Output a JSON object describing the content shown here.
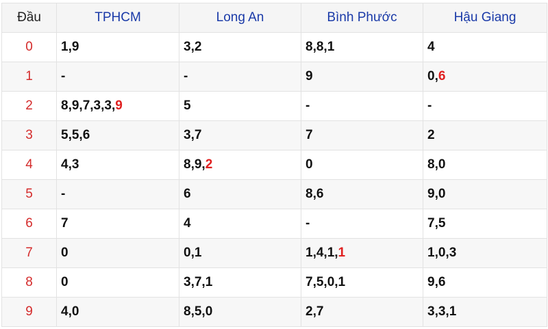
{
  "colors": {
    "header_text": "#1a3aa8",
    "highlight": "#e02020",
    "dau_text": "#d42b2b"
  },
  "headers": [
    "Đầu",
    "TPHCM",
    "Long An",
    "Bình Phước",
    "Hậu Giang"
  ],
  "rows": [
    {
      "dau": "0",
      "cells": [
        [
          {
            "t": "1,9"
          }
        ],
        [
          {
            "t": "3,2"
          }
        ],
        [
          {
            "t": "8,8,1"
          }
        ],
        [
          {
            "t": "4"
          }
        ]
      ]
    },
    {
      "dau": "1",
      "cells": [
        [
          {
            "t": "-"
          }
        ],
        [
          {
            "t": "-"
          }
        ],
        [
          {
            "t": "9"
          }
        ],
        [
          {
            "t": "0,"
          },
          {
            "t": "6",
            "hl": true
          }
        ]
      ]
    },
    {
      "dau": "2",
      "cells": [
        [
          {
            "t": "8,9,7,3,3,"
          },
          {
            "t": "9",
            "hl": true
          }
        ],
        [
          {
            "t": "5"
          }
        ],
        [
          {
            "t": "-"
          }
        ],
        [
          {
            "t": "-"
          }
        ]
      ]
    },
    {
      "dau": "3",
      "cells": [
        [
          {
            "t": "5,5,6"
          }
        ],
        [
          {
            "t": "3,7"
          }
        ],
        [
          {
            "t": "7"
          }
        ],
        [
          {
            "t": "2"
          }
        ]
      ]
    },
    {
      "dau": "4",
      "cells": [
        [
          {
            "t": "4,3"
          }
        ],
        [
          {
            "t": "8,9,"
          },
          {
            "t": "2",
            "hl": true
          }
        ],
        [
          {
            "t": "0"
          }
        ],
        [
          {
            "t": "8,0"
          }
        ]
      ]
    },
    {
      "dau": "5",
      "cells": [
        [
          {
            "t": "-"
          }
        ],
        [
          {
            "t": "6"
          }
        ],
        [
          {
            "t": "8,6"
          }
        ],
        [
          {
            "t": "9,0"
          }
        ]
      ]
    },
    {
      "dau": "6",
      "cells": [
        [
          {
            "t": "7"
          }
        ],
        [
          {
            "t": "4"
          }
        ],
        [
          {
            "t": "-"
          }
        ],
        [
          {
            "t": "7,5"
          }
        ]
      ]
    },
    {
      "dau": "7",
      "cells": [
        [
          {
            "t": "0"
          }
        ],
        [
          {
            "t": "0,1"
          }
        ],
        [
          {
            "t": "1,4,1,"
          },
          {
            "t": "1",
            "hl": true
          }
        ],
        [
          {
            "t": "1,0,3"
          }
        ]
      ]
    },
    {
      "dau": "8",
      "cells": [
        [
          {
            "t": "0"
          }
        ],
        [
          {
            "t": "3,7,1"
          }
        ],
        [
          {
            "t": "7,5,0,1"
          }
        ],
        [
          {
            "t": "9,6"
          }
        ]
      ]
    },
    {
      "dau": "9",
      "cells": [
        [
          {
            "t": "4,0"
          }
        ],
        [
          {
            "t": "8,5,0"
          }
        ],
        [
          {
            "t": "2,7"
          }
        ],
        [
          {
            "t": "3,3,1"
          }
        ]
      ]
    }
  ]
}
